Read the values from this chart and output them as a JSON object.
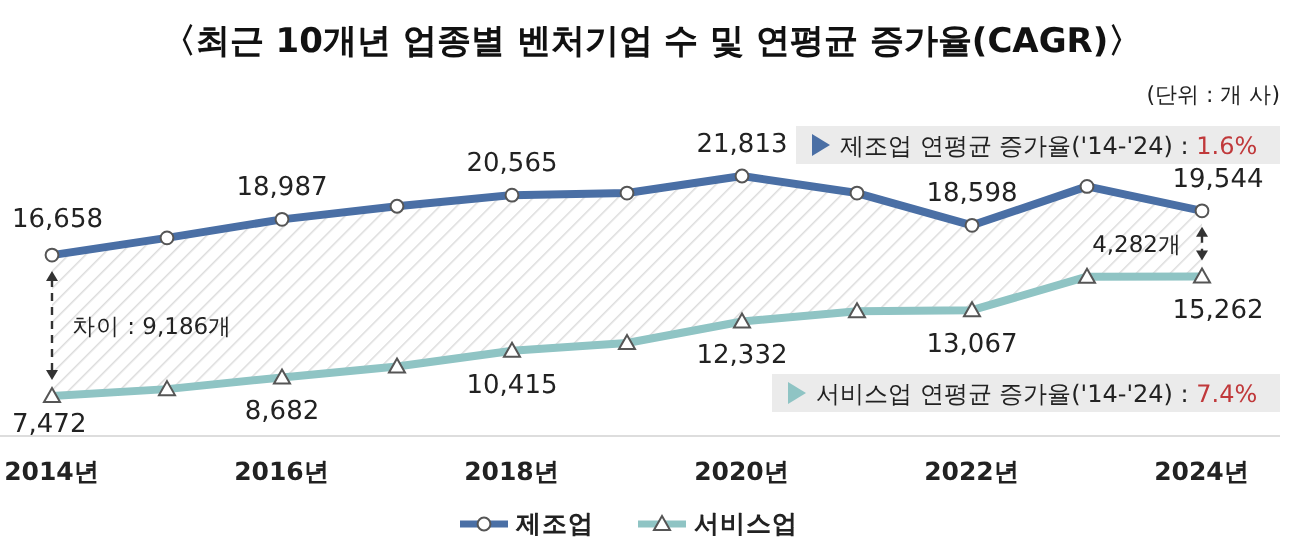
{
  "chart_data": {
    "type": "line",
    "title": "〈최근 10개년 업종별 벤처기업 수 및 연평균 증가율(CAGR)〉",
    "categories": [
      "2014년",
      null,
      "2016년",
      null,
      "2018년",
      null,
      "2020년",
      null,
      "2022년",
      null,
      "2024년"
    ],
    "series": [
      {
        "name": "제조업",
        "color": "#4a6fa5",
        "marker": "circle",
        "values": [
          16658,
          17780,
          18987,
          19840,
          20565,
          20700,
          21813,
          20700,
          18598,
          21135,
          19544
        ],
        "value_labels": [
          "16,658",
          null,
          "18,987",
          null,
          "20,565",
          null,
          "21,813",
          null,
          "18,598",
          null,
          "19,544"
        ]
      },
      {
        "name": "서비스업",
        "color": "#8fc4c4",
        "marker": "triangle",
        "values": [
          7472,
          7920,
          8682,
          9390,
          10415,
          10930,
          12332,
          13000,
          13067,
          15250,
          15262
        ],
        "value_labels": [
          "7,472",
          null,
          "8,682",
          null,
          "10,415",
          null,
          "12,332",
          null,
          "13,067",
          null,
          "15,262"
        ]
      }
    ],
    "annotations": [
      "(단위 : 개 사)",
      "제조업 연평균 증가율('14-'24) : 1.6%",
      "서비스업 연평균 증가율('14-'24) : 7.4%",
      "차이 : 9,186개",
      "4,282개"
    ],
    "legend": "bottom",
    "line_style": "solid"
  }
}
